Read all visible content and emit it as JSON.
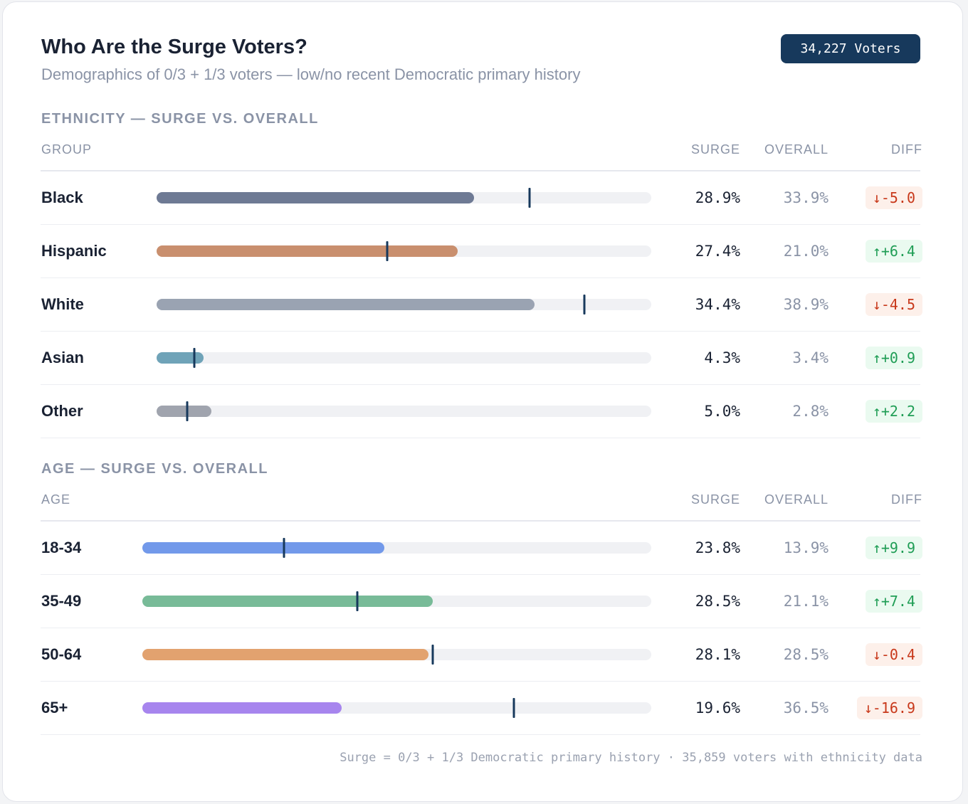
{
  "header": {
    "title": "Who Are the Surge Voters?",
    "subtitle": "Demographics of 0/3 + 1/3 voters — low/no recent Democratic primary history",
    "badge": "34,227 Voters"
  },
  "columns": {
    "surge": "SURGE",
    "overall": "OVERALL",
    "diff": "DIFF"
  },
  "colors": {
    "marker": "#17395c",
    "up_bg": "#eafaf0",
    "up_fg": "#1f9d55",
    "down_bg": "#fdf0ea",
    "down_fg": "#c8381a"
  },
  "chart_data": [
    {
      "type": "bar",
      "title": "ETHNICITY — SURGE VS. OVERALL",
      "group_label": "GROUP",
      "xlim": [
        0,
        45
      ],
      "rows": [
        {
          "label": "Black",
          "surge": 28.9,
          "overall": 33.9,
          "surge_text": "28.9%",
          "overall_text": "33.9%",
          "diff": "↓-5.0",
          "dir": "down",
          "color": "#6e7a94"
        },
        {
          "label": "Hispanic",
          "surge": 27.4,
          "overall": 21.0,
          "surge_text": "27.4%",
          "overall_text": "21.0%",
          "diff": "↑+6.4",
          "dir": "up",
          "color": "#c98f6e"
        },
        {
          "label": "White",
          "surge": 34.4,
          "overall": 38.9,
          "surge_text": "34.4%",
          "overall_text": "38.9%",
          "diff": "↓-4.5",
          "dir": "down",
          "color": "#9aa3b2"
        },
        {
          "label": "Asian",
          "surge": 4.3,
          "overall": 3.4,
          "surge_text": "4.3%",
          "overall_text": "3.4%",
          "diff": "↑+0.9",
          "dir": "up",
          "color": "#6fa3b8"
        },
        {
          "label": "Other",
          "surge": 5.0,
          "overall": 2.8,
          "surge_text": "5.0%",
          "overall_text": "2.8%",
          "diff": "↑+2.2",
          "dir": "up",
          "color": "#a0a4ae"
        }
      ]
    },
    {
      "type": "bar",
      "title": "AGE — SURGE VS. OVERALL",
      "group_label": "AGE",
      "xlim": [
        0,
        50
      ],
      "rows": [
        {
          "label": "18-34",
          "surge": 23.8,
          "overall": 13.9,
          "surge_text": "23.8%",
          "overall_text": "13.9%",
          "diff": "↑+9.9",
          "dir": "up",
          "color": "#7299ea"
        },
        {
          "label": "35-49",
          "surge": 28.5,
          "overall": 21.1,
          "surge_text": "28.5%",
          "overall_text": "21.1%",
          "diff": "↑+7.4",
          "dir": "up",
          "color": "#78bb98"
        },
        {
          "label": "50-64",
          "surge": 28.1,
          "overall": 28.5,
          "surge_text": "28.1%",
          "overall_text": "28.5%",
          "diff": "↓-0.4",
          "dir": "down",
          "color": "#e2a26f"
        },
        {
          "label": "65+",
          "surge": 19.6,
          "overall": 36.5,
          "surge_text": "19.6%",
          "overall_text": "36.5%",
          "diff": "↓-16.9",
          "dir": "down",
          "color": "#a785ee"
        }
      ]
    }
  ],
  "footer": "Surge = 0/3 + 1/3 Democratic primary history · 35,859 voters with ethnicity data"
}
